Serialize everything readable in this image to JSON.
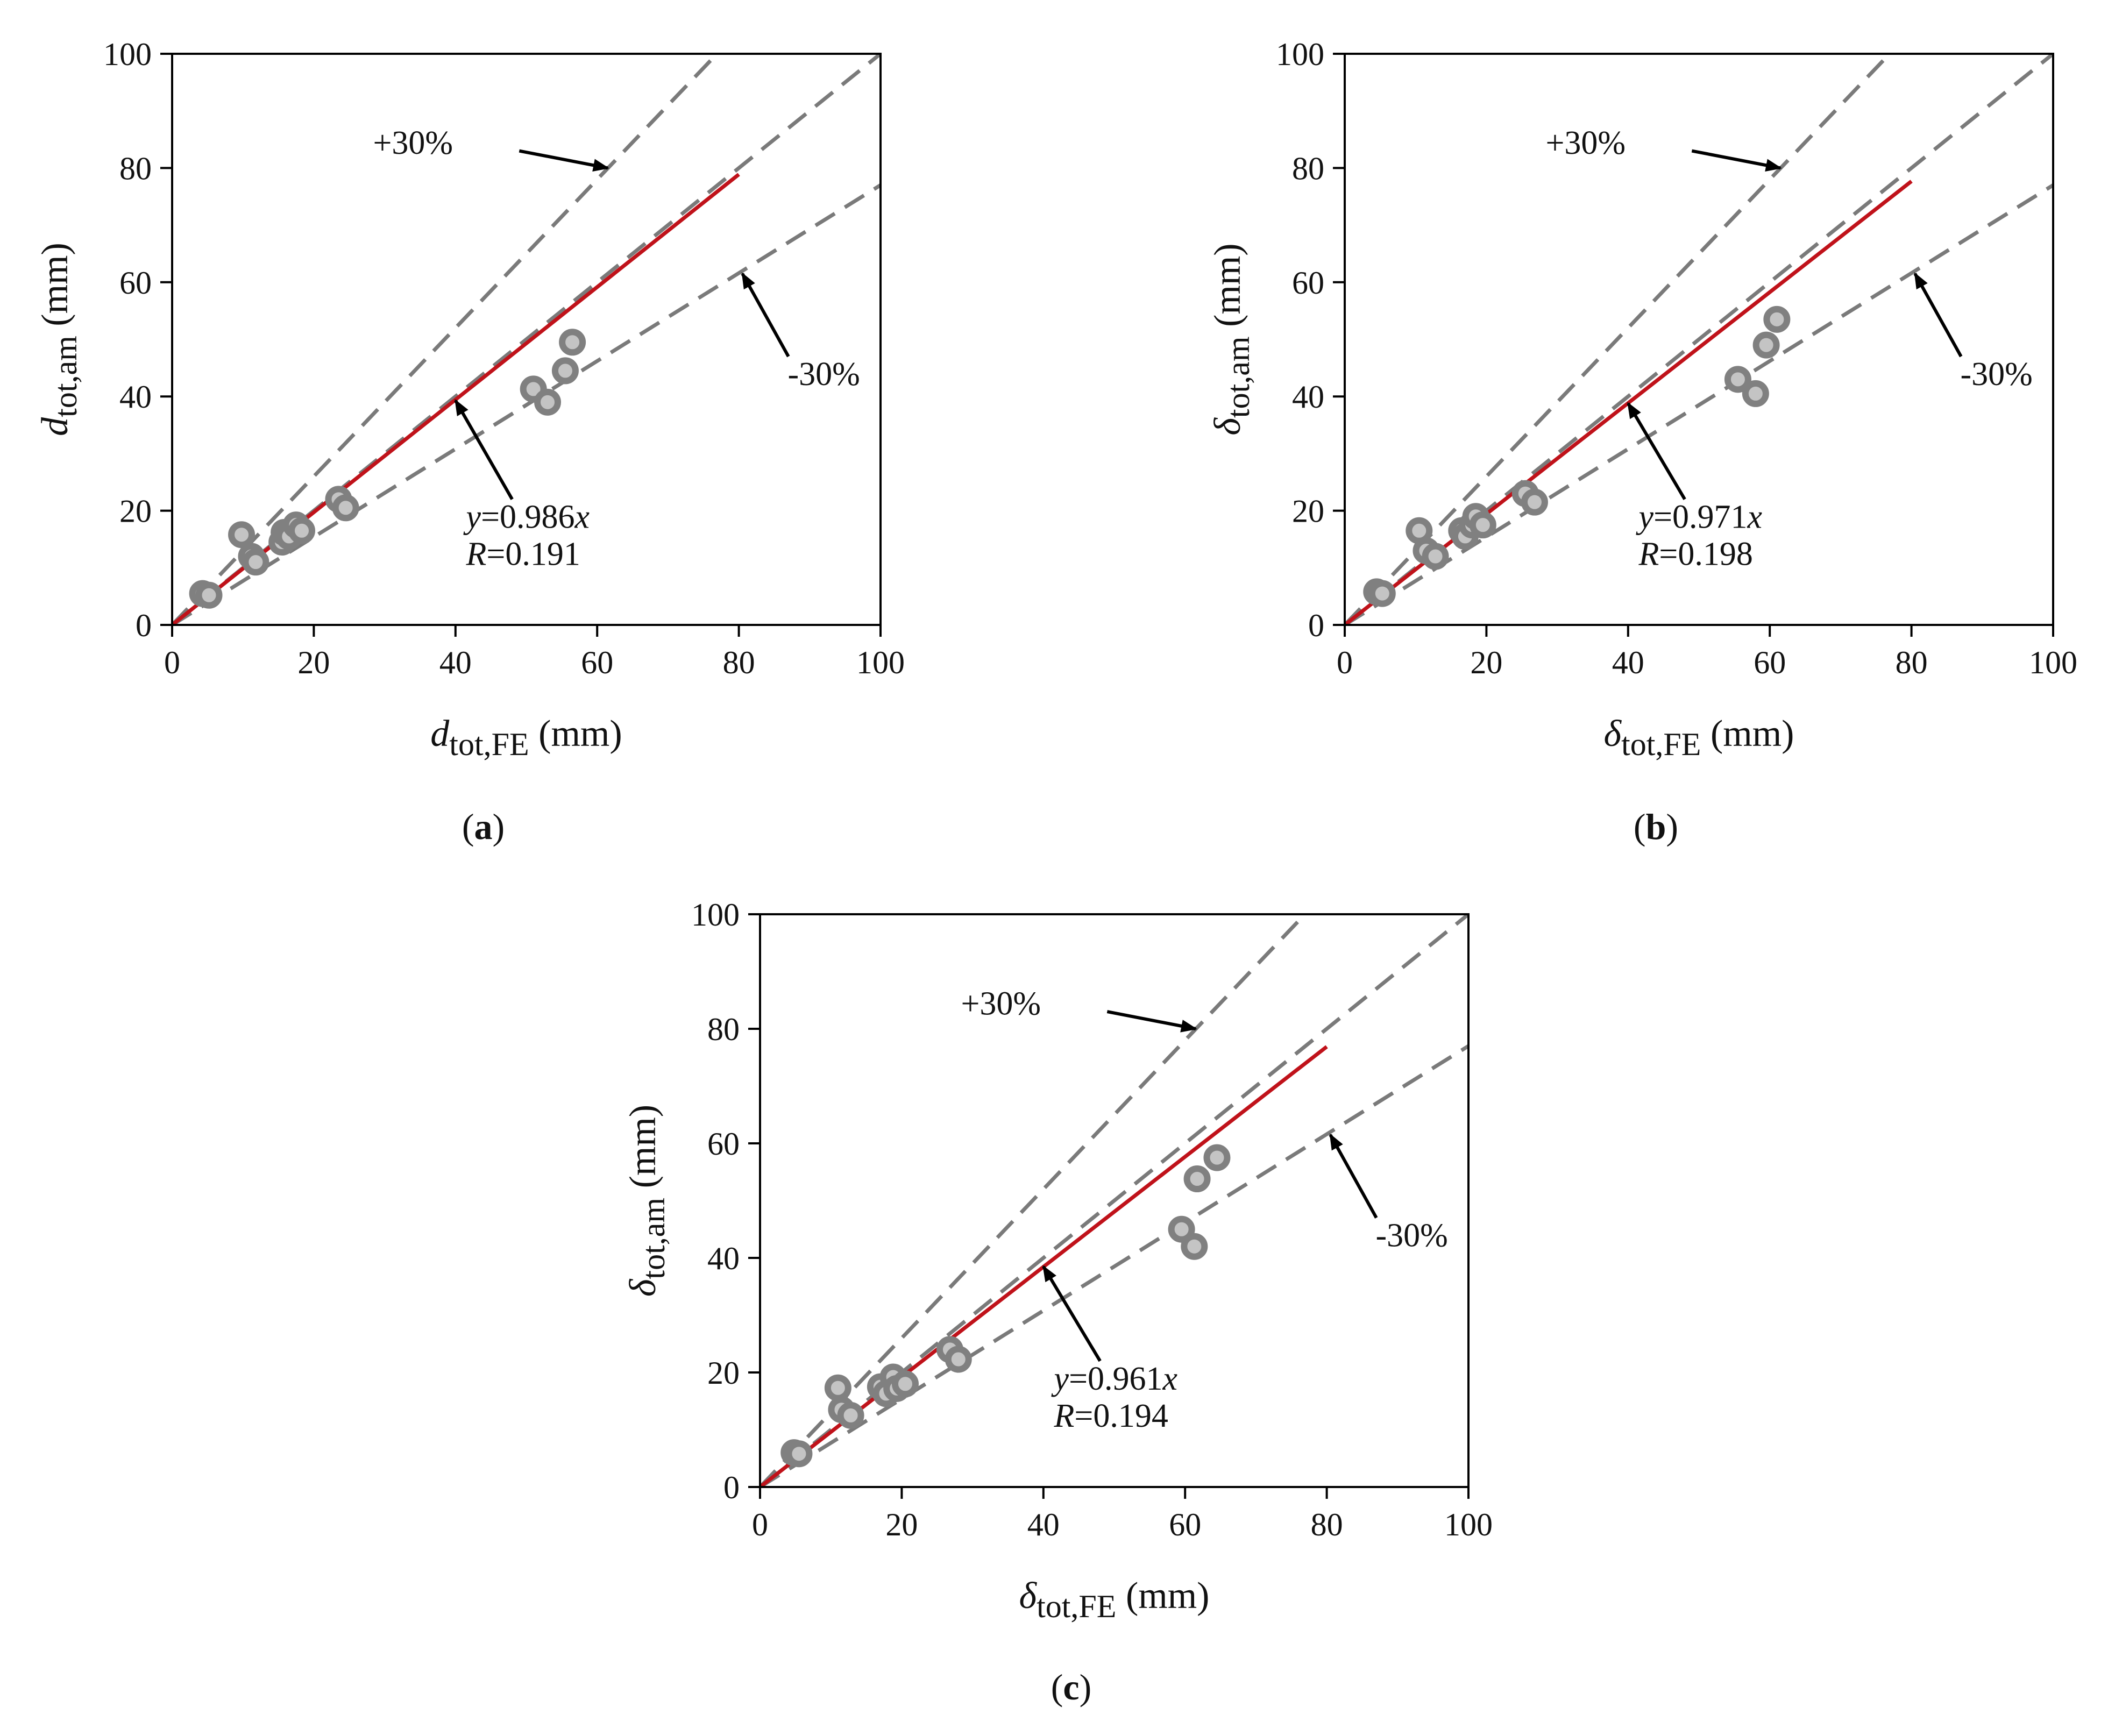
{
  "chart_data": [
    {
      "type": "scatter",
      "panel": "a",
      "panel_label": "(a)",
      "xlabel": {
        "symbol": "d",
        "italic": true,
        "subscript": "tot,FE",
        "unit": "(mm)"
      },
      "ylabel": {
        "symbol": "d",
        "italic": true,
        "subscript": "tot,am",
        "unit": "(mm)"
      },
      "xlim": [
        0,
        100
      ],
      "ylim": [
        0,
        100
      ],
      "xticks": [
        0,
        20,
        40,
        60,
        80,
        100
      ],
      "yticks": [
        0,
        20,
        40,
        60,
        80,
        100
      ],
      "fit": {
        "slope": 0.986,
        "x_end": 80,
        "color": "#c0121a",
        "equation_var": "y",
        "equation_rest": "=0.986",
        "equation_x": "x",
        "r_var": "R",
        "r_rest": "=0.191"
      },
      "bounds": {
        "plus_slope": 1.3,
        "minus_slope": 0.77,
        "plus_label": "+30%",
        "minus_label": "-30%"
      },
      "points": [
        [
          4.3,
          5.5
        ],
        [
          5.2,
          5.2
        ],
        [
          9.8,
          15.8
        ],
        [
          11.2,
          12.0
        ],
        [
          11.8,
          11.0
        ],
        [
          15.5,
          14.5
        ],
        [
          15.8,
          16.2
        ],
        [
          16.5,
          15.5
        ],
        [
          17.5,
          17.5
        ],
        [
          18.3,
          16.5
        ],
        [
          23.5,
          22.0
        ],
        [
          24.5,
          20.5
        ],
        [
          51.0,
          41.3
        ],
        [
          53.0,
          39.0
        ],
        [
          55.5,
          44.5
        ],
        [
          56.5,
          49.5
        ]
      ],
      "annotation_targets": {
        "plus_arrow_tip": [
          61.5,
          80.0
        ],
        "minus_arrow_tip": [
          80.5,
          61.5
        ],
        "fit_arrow_tip": [
          40.0,
          39.3
        ]
      }
    },
    {
      "type": "scatter",
      "panel": "b",
      "panel_label": "(b)",
      "xlabel": {
        "symbol": "δ",
        "italic": true,
        "subscript": "tot,FE",
        "unit": "(mm)"
      },
      "ylabel": {
        "symbol": "δ",
        "italic": true,
        "subscript": "tot,am",
        "unit": "(mm)"
      },
      "xlim": [
        0,
        100
      ],
      "ylim": [
        0,
        100
      ],
      "xticks": [
        0,
        20,
        40,
        60,
        80,
        100
      ],
      "yticks": [
        0,
        20,
        40,
        60,
        80,
        100
      ],
      "fit": {
        "slope": 0.971,
        "x_end": 80,
        "color": "#c0121a",
        "equation_var": "y",
        "equation_rest": "=0.971",
        "equation_x": "x",
        "r_var": "R",
        "r_rest": "=0.198"
      },
      "bounds": {
        "plus_slope": 1.3,
        "minus_slope": 0.77,
        "plus_label": "+30%",
        "minus_label": "-30%"
      },
      "points": [
        [
          4.5,
          5.8
        ],
        [
          5.3,
          5.5
        ],
        [
          10.5,
          16.5
        ],
        [
          11.5,
          13.0
        ],
        [
          12.8,
          12.0
        ],
        [
          16.5,
          16.5
        ],
        [
          17.0,
          15.5
        ],
        [
          18.0,
          17.5
        ],
        [
          18.5,
          19.0
        ],
        [
          19.5,
          17.5
        ],
        [
          25.5,
          23.0
        ],
        [
          26.8,
          21.5
        ],
        [
          55.5,
          43.0
        ],
        [
          58.0,
          40.5
        ],
        [
          59.5,
          49.0
        ],
        [
          61.0,
          53.5
        ]
      ],
      "annotation_targets": {
        "plus_arrow_tip": [
          61.5,
          80.0
        ],
        "minus_arrow_tip": [
          80.5,
          61.5
        ],
        "fit_arrow_tip": [
          40.0,
          38.8
        ]
      }
    },
    {
      "type": "scatter",
      "panel": "c",
      "panel_label": "(c)",
      "xlabel": {
        "symbol": "δ",
        "italic": true,
        "subscript": "tot,FE",
        "unit": "(mm)"
      },
      "ylabel": {
        "symbol": "δ",
        "italic": true,
        "subscript": "tot,am",
        "unit": "(mm)"
      },
      "xlim": [
        0,
        100
      ],
      "ylim": [
        0,
        100
      ],
      "xticks": [
        0,
        20,
        40,
        60,
        80,
        100
      ],
      "yticks": [
        0,
        20,
        40,
        60,
        80,
        100
      ],
      "fit": {
        "slope": 0.961,
        "x_end": 80,
        "color": "#c0121a",
        "equation_var": "y",
        "equation_rest": "=0.961",
        "equation_x": "x",
        "r_var": "R",
        "r_rest": "=0.194"
      },
      "bounds": {
        "plus_slope": 1.3,
        "minus_slope": 0.77,
        "plus_label": "+30%",
        "minus_label": "-30%"
      },
      "points": [
        [
          4.8,
          6.0
        ],
        [
          5.5,
          5.8
        ],
        [
          11.0,
          17.3
        ],
        [
          11.5,
          13.5
        ],
        [
          12.8,
          12.5
        ],
        [
          17.0,
          17.5
        ],
        [
          17.8,
          16.3
        ],
        [
          18.8,
          19.2
        ],
        [
          19.3,
          17.2
        ],
        [
          20.5,
          18.0
        ],
        [
          26.8,
          24.0
        ],
        [
          28.0,
          22.3
        ],
        [
          59.5,
          45.0
        ],
        [
          61.3,
          42.0
        ],
        [
          61.7,
          53.8
        ],
        [
          64.5,
          57.5
        ]
      ],
      "annotation_targets": {
        "plus_arrow_tip": [
          61.5,
          80.0
        ],
        "minus_arrow_tip": [
          80.5,
          61.5
        ],
        "fit_arrow_tip": [
          40.0,
          38.5
        ]
      }
    }
  ]
}
